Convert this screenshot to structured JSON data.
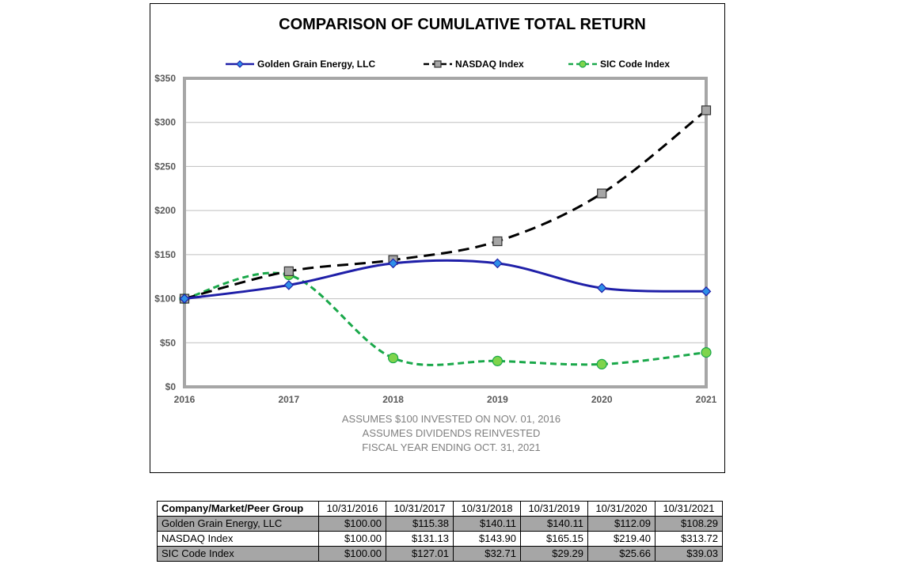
{
  "colors": {
    "golden": "#1f1fa8",
    "golden_marker": "#2e8fe8",
    "nasdaq": "#000000",
    "nasdaq_marker": "#a6a6a6",
    "sic": "#1aa84a",
    "sic_marker": "#7fd44c",
    "grid": "#bfbfbf",
    "frame": "#a6a6a6"
  },
  "chart_data": {
    "type": "line",
    "title": "COMPARISON OF CUMULATIVE TOTAL RETURN",
    "x": [
      "2016",
      "2017",
      "2018",
      "2019",
      "2020",
      "2021"
    ],
    "y_ticks": [
      "$0",
      "$50",
      "$100",
      "$150",
      "$200",
      "$250",
      "$300",
      "$350"
    ],
    "ylim": [
      0,
      350
    ],
    "grid": true,
    "legend_position": "top",
    "series": [
      {
        "name": "Golden Grain Energy, LLC",
        "marker": "diamond",
        "style": "solid",
        "values": [
          100.0,
          115.38,
          140.11,
          140.11,
          112.09,
          108.29
        ]
      },
      {
        "name": "NASDAQ Index",
        "marker": "square",
        "style": "dashed",
        "values": [
          100.0,
          131.13,
          143.9,
          165.15,
          219.4,
          313.72
        ]
      },
      {
        "name": "SIC Code Index",
        "marker": "circle",
        "style": "dashed",
        "values": [
          100.0,
          127.01,
          32.71,
          29.29,
          25.66,
          39.03
        ]
      }
    ],
    "notes": [
      "ASSUMES $100 INVESTED ON NOV. 01, 2016",
      "ASSUMES DIVIDENDS REINVESTED",
      "FISCAL YEAR ENDING OCT. 31, 2021"
    ]
  },
  "table": {
    "header": [
      "Company/Market/Peer Group",
      "10/31/2016",
      "10/31/2017",
      "10/31/2018",
      "10/31/2019",
      "10/31/2020",
      "10/31/2021"
    ],
    "rows": [
      [
        "Golden Grain Energy, LLC",
        "$100.00",
        "$115.38",
        "$140.11",
        "$140.11",
        "$112.09",
        "$108.29"
      ],
      [
        "NASDAQ Index",
        "$100.00",
        "$131.13",
        "$143.90",
        "$165.15",
        "$219.40",
        "$313.72"
      ],
      [
        "SIC Code Index",
        "$100.00",
        "$127.01",
        "$32.71",
        "$29.29",
        "$25.66",
        "$39.03"
      ]
    ]
  }
}
